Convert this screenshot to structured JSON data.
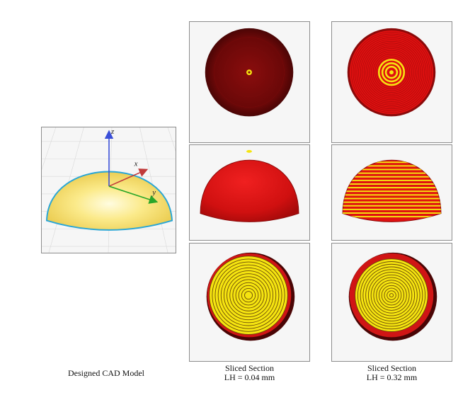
{
  "figure": {
    "cad_model": {
      "caption": "Designed CAD Model",
      "axes": {
        "z": "z",
        "x": "x",
        "y": "y"
      }
    },
    "columns": [
      {
        "caption_line1": "Sliced Section",
        "caption_line2": "LH = 0.04 mm",
        "layer_style": "fine"
      },
      {
        "caption_line1": "Sliced Section",
        "caption_line2": "LH = 0.32 mm",
        "layer_style": "coarse"
      }
    ],
    "views": [
      "top view",
      "side view",
      "bottom view"
    ],
    "colors": {
      "dome_yellow": "#f7e06a",
      "dome_edge": "#2aa6d6",
      "slice_red": "#e01010",
      "slice_dark": "#7a0b0b",
      "slice_yellow": "#f5e410",
      "axis_z": "#3a4fd8",
      "axis_x": "#c03a3a",
      "axis_y": "#2aa62a"
    }
  }
}
